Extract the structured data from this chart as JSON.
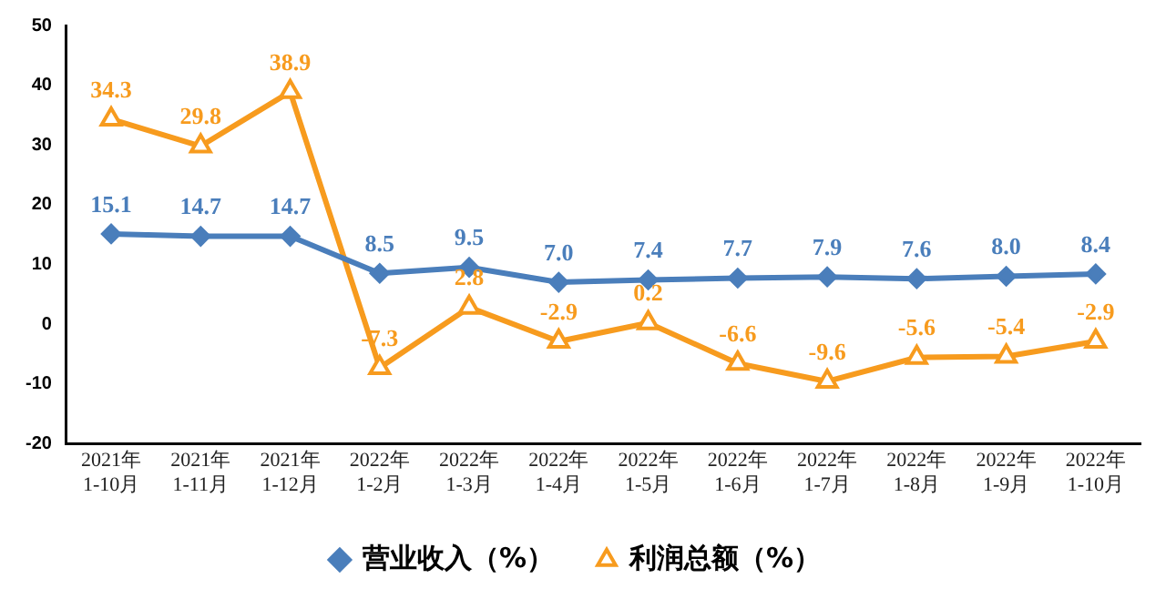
{
  "chart_data": {
    "type": "line",
    "categories": [
      "2021年\n1-10月",
      "2021年\n1-11月",
      "2021年\n1-12月",
      "2022年\n1-2月",
      "2022年\n1-3月",
      "2022年\n1-4月",
      "2022年\n1-5月",
      "2022年\n1-6月",
      "2022年\n1-7月",
      "2022年\n1-8月",
      "2022年\n1-9月",
      "2022年\n1-10月"
    ],
    "series": [
      {
        "name": "营业收入（%）",
        "color": "#4a7ebb",
        "marker": "diamond",
        "values": [
          15.1,
          14.7,
          14.7,
          8.5,
          9.5,
          7.0,
          7.4,
          7.7,
          7.9,
          7.6,
          8.0,
          8.4
        ],
        "value_labels": [
          "15.1",
          "14.7",
          "14.7",
          "8.5",
          "9.5",
          "7.0",
          "7.4",
          "7.7",
          "7.9",
          "7.6",
          "8.0",
          "8.4"
        ]
      },
      {
        "name": "利润总额（%）",
        "color": "#f79b1e",
        "marker": "triangle",
        "values": [
          34.3,
          29.8,
          38.9,
          -7.3,
          2.8,
          -2.9,
          0.2,
          -6.6,
          -9.6,
          -5.6,
          -5.4,
          -2.9
        ],
        "value_labels": [
          "34.3",
          "29.8",
          "38.9",
          "-7.3",
          "2.8",
          "-2.9",
          "0.2",
          "-6.6",
          "-9.6",
          "-5.6",
          "-5.4",
          "-2.9"
        ]
      }
    ],
    "ylim": [
      -20,
      50
    ],
    "yticks": [
      -20,
      -10,
      0,
      10,
      20,
      30,
      40,
      50
    ],
    "grid": false,
    "legend": "bottom"
  }
}
